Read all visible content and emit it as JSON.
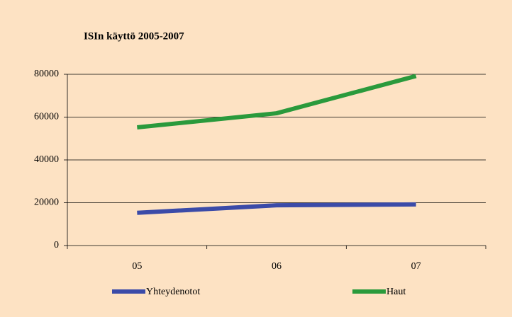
{
  "chart_data": {
    "type": "line",
    "title": "ISIn käyttö 2005-2007",
    "categories": [
      "05",
      "06",
      "07"
    ],
    "series": [
      {
        "name": "Yhteydenotot",
        "color": "#3b4ba8",
        "values": [
          15300,
          18800,
          19200
        ]
      },
      {
        "name": "Haut",
        "color": "#2a9a3c",
        "values": [
          55200,
          61800,
          79200
        ]
      }
    ],
    "ylim": [
      0,
      80000
    ],
    "yticks": [
      0,
      20000,
      40000,
      60000,
      80000
    ],
    "grid": true,
    "legend": "bottom"
  }
}
